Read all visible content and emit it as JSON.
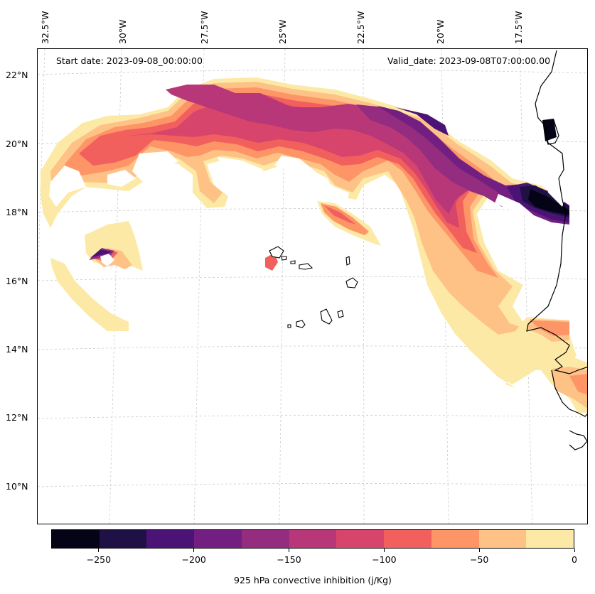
{
  "header": {
    "start_date": "Start date: 2023-09-08_00:00:00",
    "valid_date": "Valid_date: 2023-09-08T07:00:00.00"
  },
  "longitude_labels": [
    "32.5°W",
    "30°W",
    "27.5°W",
    "25°W",
    "22.5°W",
    "20°W",
    "17.5°W"
  ],
  "latitude_labels": [
    "22°N",
    "20°N",
    "18°N",
    "16°N",
    "14°N",
    "12°N",
    "10°N"
  ],
  "colorbar": {
    "title": "925 hPa convective inhibition (j/Kg)",
    "tick_labels": [
      "−250",
      "−200",
      "−150",
      "−100",
      "−50",
      "0"
    ],
    "tick_values": [
      -250,
      -200,
      -150,
      -100,
      -50,
      0
    ],
    "range": [
      -275,
      0
    ],
    "colors": [
      "#050417",
      "#1f1145",
      "#4c1376",
      "#721f81",
      "#942c80",
      "#b73779",
      "#d8456c",
      "#f1605d",
      "#fd9567",
      "#fec287",
      "#fde9a6"
    ]
  },
  "map": {
    "variable": "925 hPa convective inhibition",
    "units": "j/Kg",
    "region": "Eastern tropical Atlantic, Cabo Verde islands and West African coast",
    "lon_range_deg_W": [
      33,
      16
    ],
    "lat_range_deg_N": [
      9,
      23
    ]
  }
}
